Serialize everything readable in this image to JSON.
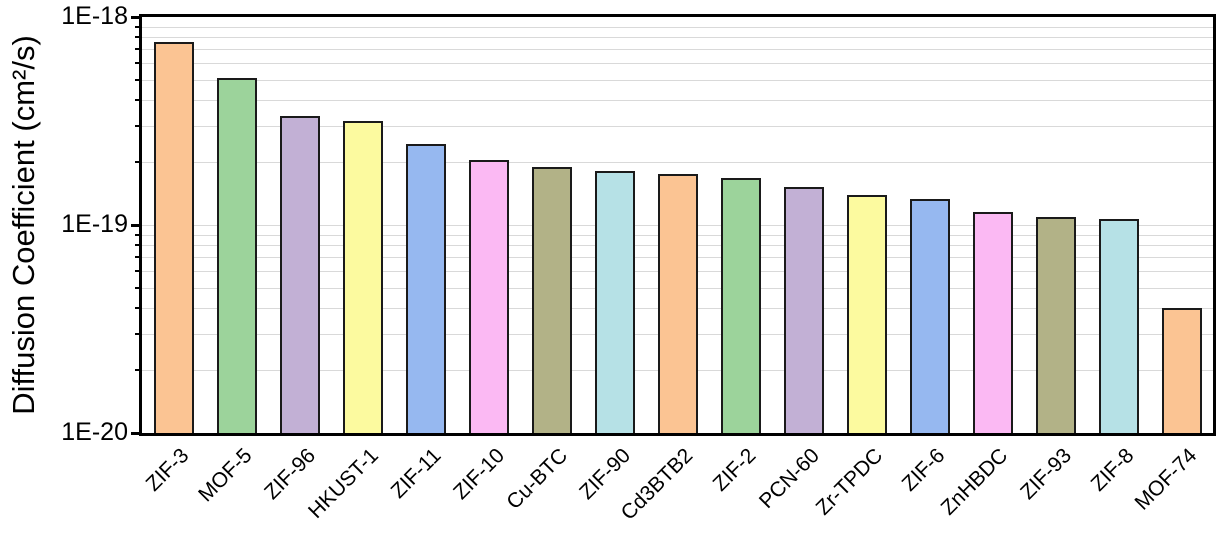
{
  "chart_data": {
    "type": "bar",
    "title": "",
    "xlabel": "",
    "ylabel": "Diffusion Coefficient (cm²/s)",
    "y_scale": "log",
    "ylim": [
      1e-20,
      1e-18
    ],
    "y_tick_labels": [
      "1E-18",
      "1E-19",
      "1E-20"
    ],
    "y_tick_values": [
      1e-18,
      1e-19,
      1e-20
    ],
    "grid": "horizontal, log minor gridlines, light gray",
    "legend": "none",
    "categories": [
      "ZIF-3",
      "MOF-5",
      "ZIF-96",
      "HKUST-1",
      "ZIF-11",
      "ZIF-10",
      "Cu-BTC",
      "ZIF-90",
      "Cd3BTB2",
      "ZIF-2",
      "PCN-60",
      "Zr-TPDC",
      "ZIF-6",
      "ZnHBDC",
      "ZIF-93",
      "ZIF-8",
      "MOF-74"
    ],
    "values": [
      7.6e-19,
      5.1e-19,
      3.35e-19,
      3.15e-19,
      2.45e-19,
      2.05e-19,
      1.9e-19,
      1.82e-19,
      1.76e-19,
      1.68e-19,
      1.52e-19,
      1.4e-19,
      1.33e-19,
      1.15e-19,
      1.09e-19,
      1.07e-19,
      4e-20
    ],
    "x_label_rotation_deg": 45,
    "palette": [
      "#FBC493",
      "#9CD39B",
      "#C2B0D5",
      "#FCFA9F",
      "#96B8F0",
      "#FBB9F3",
      "#B2B287",
      "#B6E1E6"
    ]
  },
  "colors": {
    "background": "#ffffff",
    "axis_frame": "#000000",
    "bar_border": "#1a1a1a",
    "gridline": "#d9d9d9",
    "text": "#000000"
  }
}
